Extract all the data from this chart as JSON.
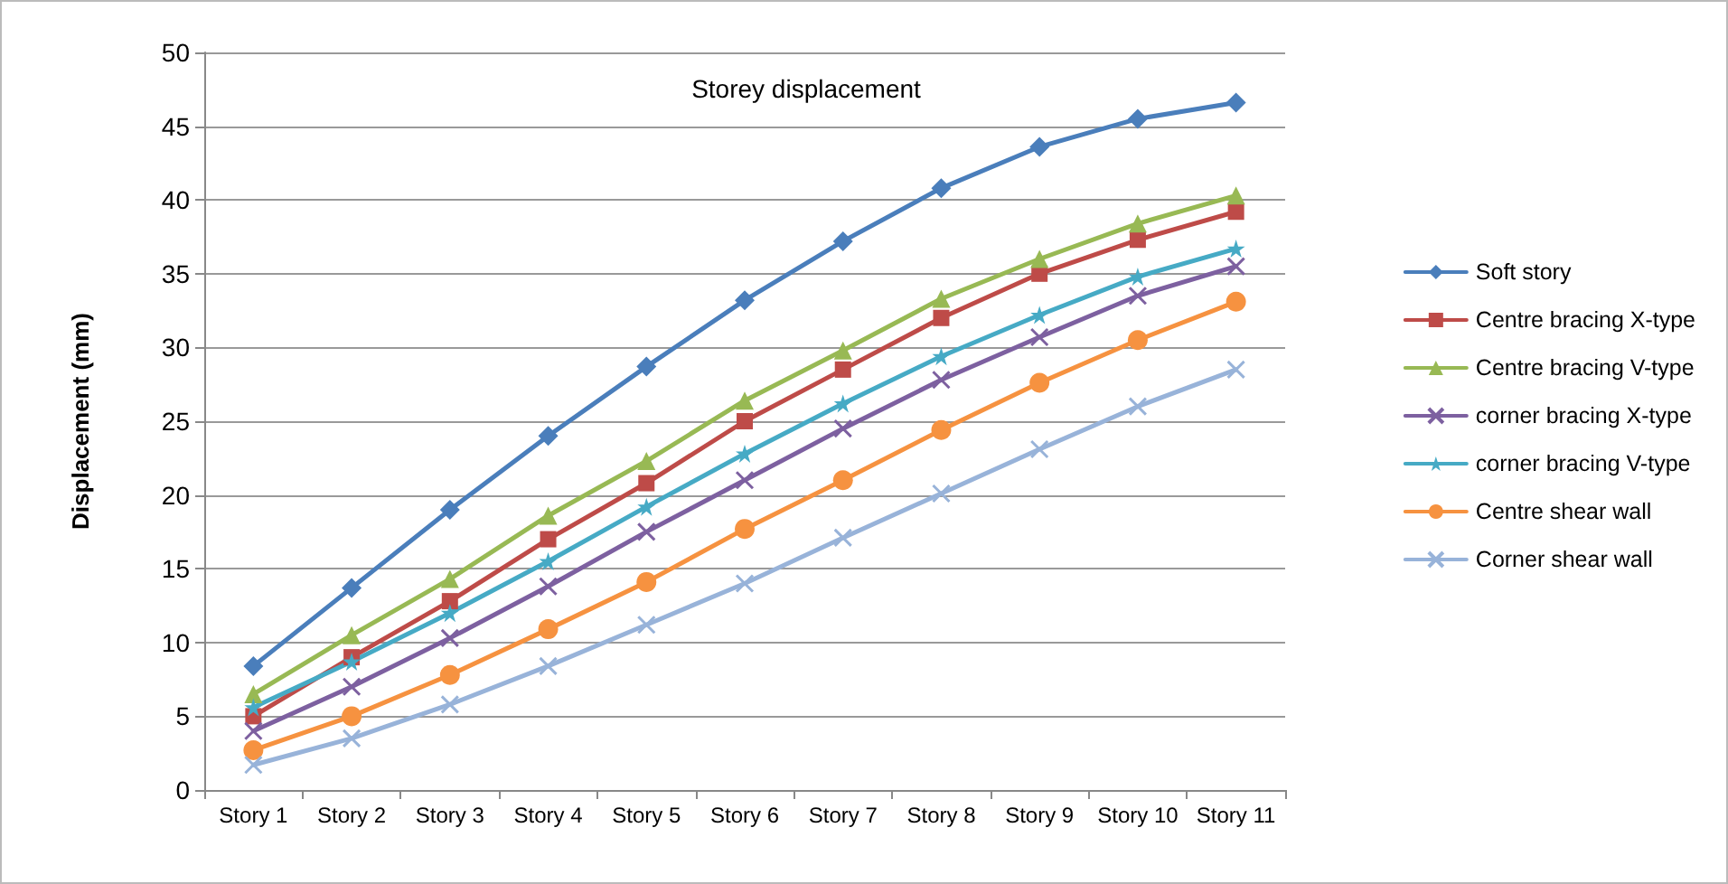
{
  "chart_data": {
    "type": "line",
    "title": "Storey displacement",
    "ylabel": "Displacement (mm)",
    "categories": [
      "Story 1",
      "Story 2",
      "Story 3",
      "Story 4",
      "Story 5",
      "Story 6",
      "Story 7",
      "Story 8",
      "Story 9",
      "Story 10",
      "Story 11"
    ],
    "series": [
      {
        "name": "Soft story",
        "color": "#4a7ebb",
        "marker": "diamond",
        "values": [
          8.4,
          13.7,
          19,
          24,
          28.7,
          33.2,
          37.2,
          40.8,
          43.6,
          45.5,
          46.6
        ]
      },
      {
        "name": "Centre bracing X-type",
        "color": "#be4b48",
        "marker": "square",
        "values": [
          5,
          9,
          12.8,
          17,
          20.8,
          25,
          28.5,
          32,
          35,
          37.3,
          39.2
        ]
      },
      {
        "name": "Centre bracing V-type",
        "color": "#98b954",
        "marker": "triangle",
        "values": [
          6.5,
          10.5,
          14.3,
          18.6,
          22.3,
          26.4,
          29.8,
          33.3,
          36,
          38.4,
          40.3
        ]
      },
      {
        "name": "corner bracing X-type",
        "color": "#7d60a0",
        "marker": "cross",
        "values": [
          4,
          7,
          10.3,
          13.8,
          17.5,
          21,
          24.5,
          27.8,
          30.7,
          33.5,
          35.5
        ]
      },
      {
        "name": "corner bracing V-type",
        "color": "#46aac5",
        "marker": "star",
        "values": [
          5.6,
          8.7,
          12,
          15.5,
          19.2,
          22.8,
          26.2,
          29.4,
          32.2,
          34.8,
          36.7
        ]
      },
      {
        "name": "Centre shear wall",
        "color": "#f69240",
        "marker": "circle",
        "values": [
          2.7,
          5,
          7.8,
          10.9,
          14.1,
          17.7,
          21,
          24.4,
          27.6,
          30.5,
          33.1
        ]
      },
      {
        "name": "Corner shear wall",
        "color": "#98b3d9",
        "marker": "cross",
        "values": [
          1.7,
          3.5,
          5.8,
          8.4,
          11.2,
          14,
          17.1,
          20.1,
          23.1,
          26,
          28.5
        ]
      }
    ],
    "ylim": [
      0,
      50
    ],
    "yticks": [
      0,
      5,
      10,
      15,
      20,
      25,
      30,
      35,
      40,
      45,
      50
    ],
    "grid": "y",
    "legend": "right",
    "line_style": "solid"
  }
}
